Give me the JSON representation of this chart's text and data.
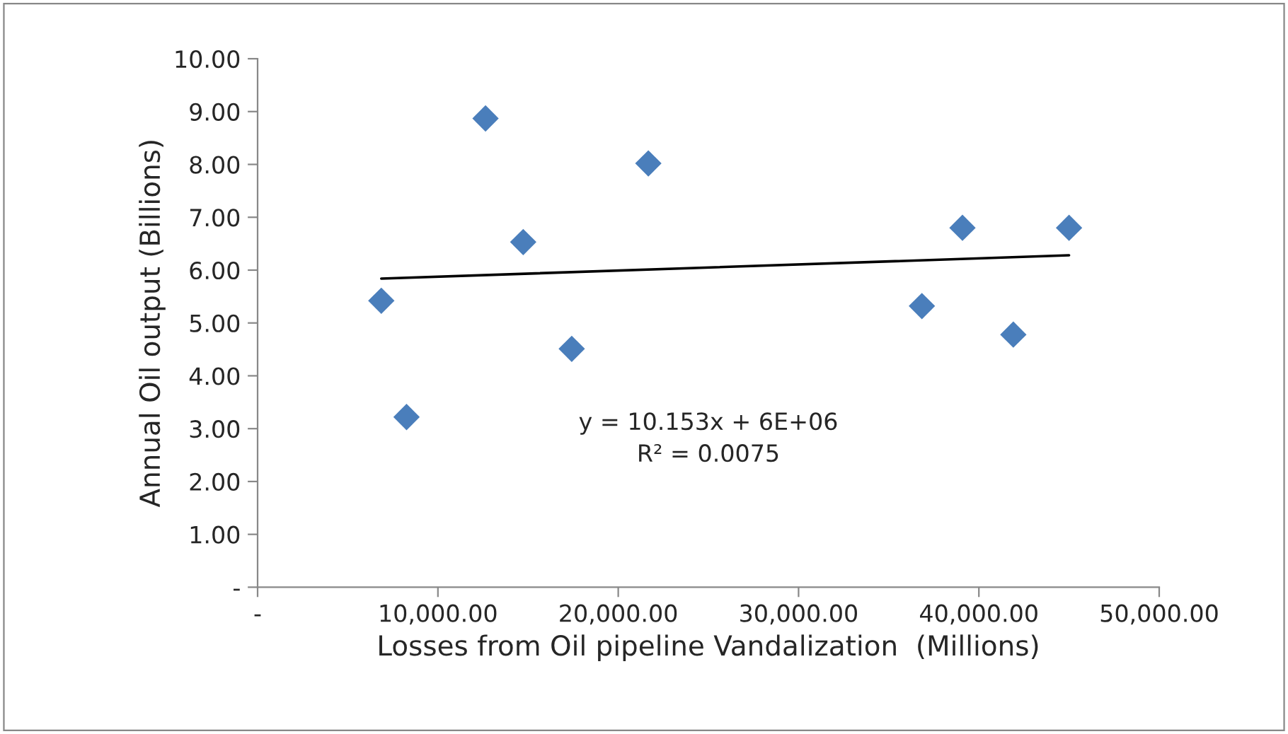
{
  "chart_data": {
    "type": "scatter",
    "xlabel": "Losses from Oil pipeline Vandalization  (Millions)",
    "ylabel": "Annual Oil output (Billions)",
    "series": [
      {
        "color": "#4a7ebb",
        "marker": "diamond",
        "x": [
          6860,
          8260,
          12640,
          14730,
          17420,
          21670,
          36840,
          39090,
          41910,
          45000
        ],
        "values": [
          5.42,
          3.22,
          8.87,
          6.53,
          4.51,
          8.02,
          5.32,
          6.8,
          4.78,
          6.8
        ]
      },
      {
        "type": "line",
        "color": "#000000",
        "marker": "none",
        "line_style": "solid",
        "x": [
          6860,
          45000
        ],
        "values": [
          5.84,
          6.28
        ]
      }
    ],
    "xlim": [
      0,
      50000
    ],
    "xticks": [
      {
        "value": 0,
        "label": "-"
      },
      {
        "value": 10000,
        "label": "10,000.00"
      },
      {
        "value": 20000,
        "label": "20,000.00"
      },
      {
        "value": 30000,
        "label": "30,000.00"
      },
      {
        "value": 40000,
        "label": "40,000.00"
      },
      {
        "value": 50000,
        "label": "50,000.00"
      }
    ],
    "ylim": [
      0,
      10
    ],
    "yticks": [
      {
        "value": 0,
        "label": "-"
      },
      {
        "value": 1,
        "label": "1.00"
      },
      {
        "value": 2,
        "label": "2.00"
      },
      {
        "value": 3,
        "label": "3.00"
      },
      {
        "value": 4,
        "label": "4.00"
      },
      {
        "value": 5,
        "label": "5.00"
      },
      {
        "value": 6,
        "label": "6.00"
      },
      {
        "value": 7,
        "label": "7.00"
      },
      {
        "value": 8,
        "label": "8.00"
      },
      {
        "value": 9,
        "label": "9.00"
      },
      {
        "value": 10,
        "label": "10.00"
      }
    ],
    "annotations": [
      "y = 10.153x + 6E+06\nR² = 0.0075"
    ],
    "grid": false,
    "legend": false
  }
}
